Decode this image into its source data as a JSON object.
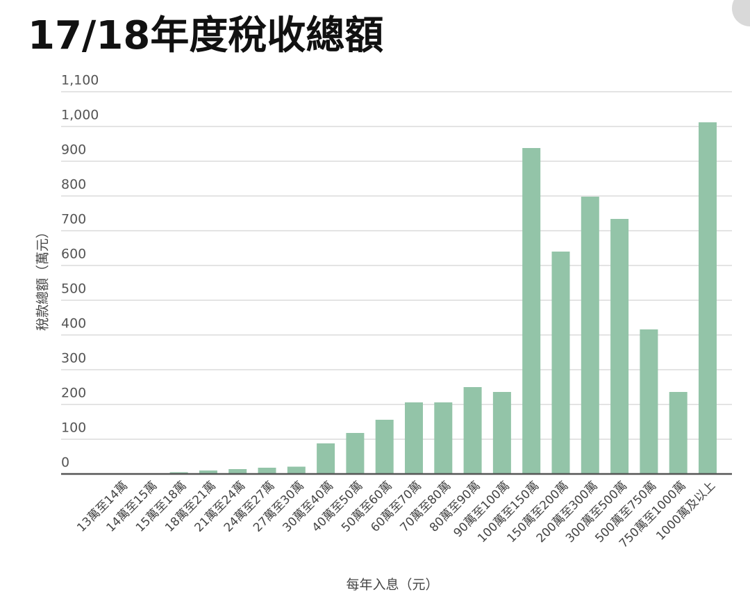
{
  "chart_data": {
    "type": "bar",
    "title": "17/18年度稅收總額",
    "y_label": "稅款總額（萬元）",
    "x_label": "每年入息（元）",
    "categories": [
      "13萬至14萬",
      "14萬至15萬",
      "15萬至18萬",
      "18萬至21萬",
      "21萬至24萬",
      "24萬至27萬",
      "27萬至30萬",
      "30萬至40萬",
      "40萬至50萬",
      "50萬至60萬",
      "60萬至70萬",
      "70萬至80萬",
      "80萬至90萬",
      "90萬至100萬",
      "100萬至150萬",
      "150萬至200萬",
      "200萬至300萬",
      "300萬至500萬",
      "500萬至750萬",
      "750萬至1000萬",
      "1000萬及以上"
    ],
    "values": [
      0,
      0,
      5,
      10,
      14,
      18,
      21,
      88,
      118,
      156,
      206,
      206,
      250,
      236,
      938,
      640,
      798,
      734,
      416,
      236,
      1012
    ],
    "color": "#93c4a8",
    "ylim": [
      0,
      1100
    ],
    "yticks": [
      0,
      100,
      200,
      300,
      400,
      500,
      600,
      700,
      800,
      900,
      {
        "value": 1000,
        "label": "1,000"
      },
      {
        "value": 1100,
        "label": "1,100"
      }
    ],
    "grid": true
  }
}
